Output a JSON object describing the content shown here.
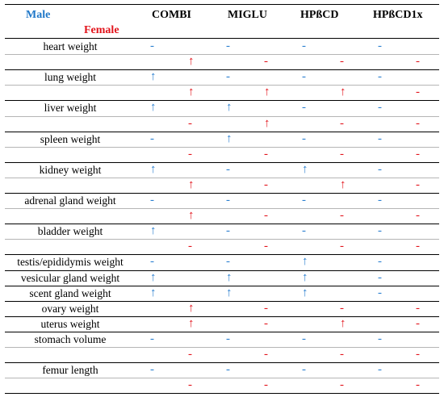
{
  "header": {
    "male_label": "Male",
    "female_label": "Female",
    "columns": [
      "COMBI",
      "MIGLU",
      "HPßCD",
      "HPßCD1x"
    ]
  },
  "colors": {
    "male": "#2a7fd0",
    "female": "#e2141c"
  },
  "legend": {
    "up": "↑",
    "none": "-"
  },
  "rows": [
    {
      "label": "heart weight",
      "male": [
        "-",
        "-",
        "-",
        "-"
      ],
      "female": [
        "↑",
        "-",
        "-",
        "-"
      ]
    },
    {
      "label": "lung weight",
      "male": [
        "↑",
        "-",
        "-",
        "-"
      ],
      "female": [
        "↑",
        "↑",
        "↑",
        "-"
      ]
    },
    {
      "label": "liver weight",
      "male": [
        "↑",
        "↑",
        "-",
        "-"
      ],
      "female": [
        "-",
        "↑",
        "-",
        "-"
      ]
    },
    {
      "label": "spleen weight",
      "male": [
        "-",
        "↑",
        "-",
        "-"
      ],
      "female": [
        "-",
        "-",
        "-",
        "-"
      ]
    },
    {
      "label": "kidney weight",
      "male": [
        "↑",
        "-",
        "↑",
        "-"
      ],
      "female": [
        "↑",
        "-",
        "↑",
        "-"
      ]
    },
    {
      "label": "adrenal gland weight",
      "male": [
        "-",
        "-",
        "-",
        "-"
      ],
      "female": [
        "↑",
        "-",
        "-",
        "-"
      ]
    },
    {
      "label": "bladder weight",
      "male": [
        "↑",
        "-",
        "-",
        "-"
      ],
      "female": [
        "-",
        "-",
        "-",
        "-"
      ]
    },
    {
      "label": "testis/epididymis weight",
      "male": [
        "-",
        "-",
        "↑",
        "-"
      ],
      "female": null
    },
    {
      "label": "vesicular gland weight",
      "male": [
        "↑",
        "↑",
        "↑",
        "-"
      ],
      "female": null
    },
    {
      "label": "scent gland weight",
      "male": [
        "↑",
        "↑",
        "↑",
        "-"
      ],
      "female": null
    },
    {
      "label": "ovary weight",
      "male": null,
      "female": [
        "↑",
        "-",
        "-",
        "-"
      ]
    },
    {
      "label": "uterus weight",
      "male": null,
      "female": [
        "↑",
        "-",
        "↑",
        "-"
      ]
    },
    {
      "label": "stomach volume",
      "male": [
        "-",
        "-",
        "-",
        "-"
      ],
      "female": [
        "-",
        "-",
        "-",
        "-"
      ]
    },
    {
      "label": "femur length",
      "male": [
        "-",
        "-",
        "-",
        "-"
      ],
      "female": [
        "-",
        "-",
        "-",
        "-"
      ]
    }
  ]
}
